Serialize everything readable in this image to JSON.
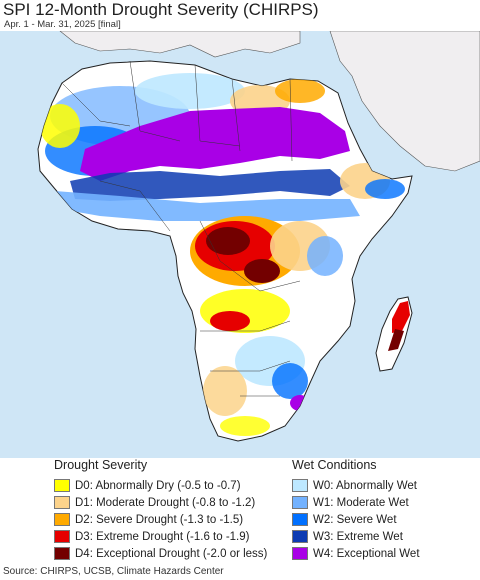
{
  "header": {
    "title": "SPI 12-Month Drought Severity (CHIRPS)",
    "subtitle": "Apr. 1 - Mar. 31, 2025 [final]"
  },
  "legend": {
    "drought_title": "Drought Severity",
    "drought_items": [
      {
        "label": "D0: Abnormally Dry (-0.5 to -0.7)",
        "color": "#ffff00"
      },
      {
        "label": "D1: Moderate Drought (-0.8 to -1.2)",
        "color": "#fcd38b"
      },
      {
        "label": "D2: Severe Drought (-1.3 to -1.5)",
        "color": "#ffaa00"
      },
      {
        "label": "D3: Extreme Drought (-1.6 to -1.9)",
        "color": "#e60000"
      },
      {
        "label": "D4: Exceptional Drought (-2.0 or less)",
        "color": "#730000"
      }
    ],
    "wet_title": "Wet Conditions",
    "wet_items": [
      {
        "label": "W0: Abnormally Wet",
        "color": "#bee8ff"
      },
      {
        "label": "W1: Moderate Wet",
        "color": "#73b2ff"
      },
      {
        "label": "W2: Severe Wet",
        "color": "#0070ff"
      },
      {
        "label": "W3: Extreme Wet",
        "color": "#0d3bb2"
      },
      {
        "label": "W4: Exceptional Wet",
        "color": "#a900e6"
      }
    ]
  },
  "map": {
    "ocean_color": "#cfe6f6",
    "land_color": "#ffffff",
    "outside_land_color": "#f0eef0"
  },
  "footer": {
    "source": "Source: CHIRPS, UCSB, Climate Hazards Center"
  }
}
